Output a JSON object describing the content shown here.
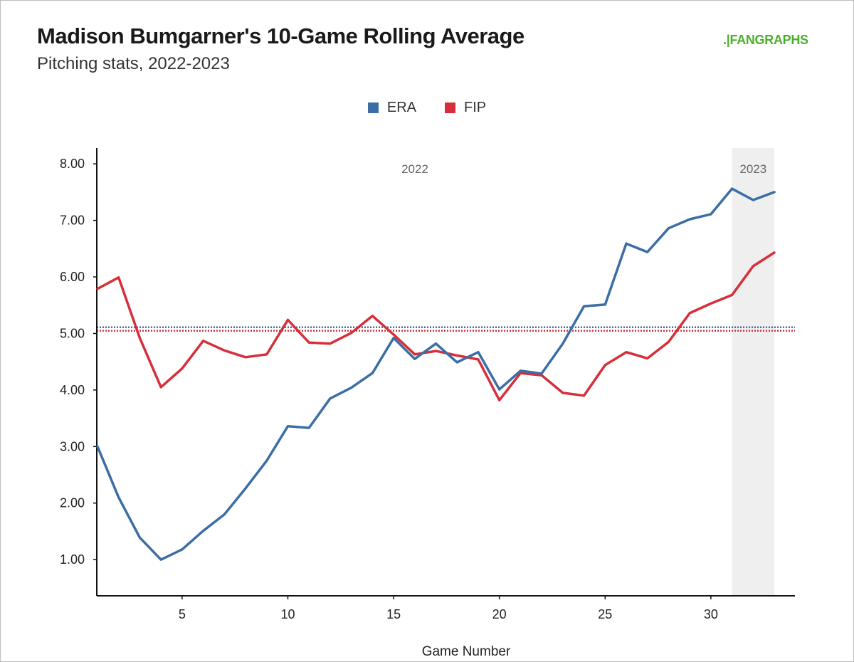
{
  "header": {
    "title": "Madison Bumgarner's 10-Game Rolling Average",
    "subtitle": "Pitching stats, 2022-2023",
    "logo_text_prefix": ".|",
    "logo_text": "FANGRAPHS"
  },
  "colors": {
    "era": "#3b6ea5",
    "fip": "#d62f3a",
    "season_shade": "#efefef",
    "logo": "#4caf2a"
  },
  "chart_data": {
    "type": "line",
    "title": "Madison Bumgarner's 10-Game Rolling Average",
    "subtitle": "Pitching stats, 2022-2023",
    "xlabel": "Game Number",
    "ylabel": "",
    "xlim": [
      1,
      34
    ],
    "ylim": [
      0.6,
      8.3
    ],
    "x_ticks": [
      5,
      10,
      15,
      20,
      25,
      30
    ],
    "y_ticks": [
      1,
      2,
      3,
      4,
      5,
      6,
      7,
      8
    ],
    "y_tick_labels": [
      "1.00",
      "2.00",
      "3.00",
      "4.00",
      "5.00",
      "6.00",
      "7.00",
      "8.00"
    ],
    "grid": false,
    "legend": {
      "position": "top-center",
      "entries": [
        "ERA",
        "FIP"
      ]
    },
    "x": [
      1,
      2,
      3,
      4,
      5,
      6,
      7,
      8,
      9,
      10,
      11,
      12,
      13,
      14,
      15,
      16,
      17,
      18,
      19,
      20,
      21,
      22,
      23,
      24,
      25,
      26,
      27,
      28,
      29,
      30,
      31,
      32,
      33
    ],
    "series": [
      {
        "name": "ERA",
        "color": "#3b6ea5",
        "values": [
          3.0,
          2.1,
          1.39,
          1.0,
          1.18,
          1.51,
          1.8,
          2.26,
          2.75,
          3.36,
          3.33,
          3.85,
          4.04,
          4.3,
          4.92,
          4.55,
          4.82,
          4.49,
          4.67,
          4.01,
          4.34,
          4.29,
          4.82,
          5.48,
          5.51,
          6.59,
          6.44,
          6.86,
          7.02,
          7.11,
          7.56,
          7.36,
          7.5
        ],
        "average": 5.11
      },
      {
        "name": "FIP",
        "color": "#d62f3a",
        "values": [
          5.79,
          5.99,
          4.92,
          4.05,
          4.38,
          4.87,
          4.7,
          4.58,
          4.63,
          5.24,
          4.84,
          4.82,
          5.01,
          5.31,
          4.98,
          4.63,
          4.69,
          4.61,
          4.54,
          3.82,
          4.3,
          4.26,
          3.95,
          3.9,
          4.44,
          4.67,
          4.56,
          4.85,
          5.36,
          5.53,
          5.68,
          6.19,
          6.43
        ],
        "average": 5.06
      }
    ],
    "seasons": [
      {
        "label": "2022",
        "start": 1,
        "end": 31,
        "shaded": false
      },
      {
        "label": "2023",
        "start": 31,
        "end": 33,
        "shaded": true
      }
    ]
  }
}
